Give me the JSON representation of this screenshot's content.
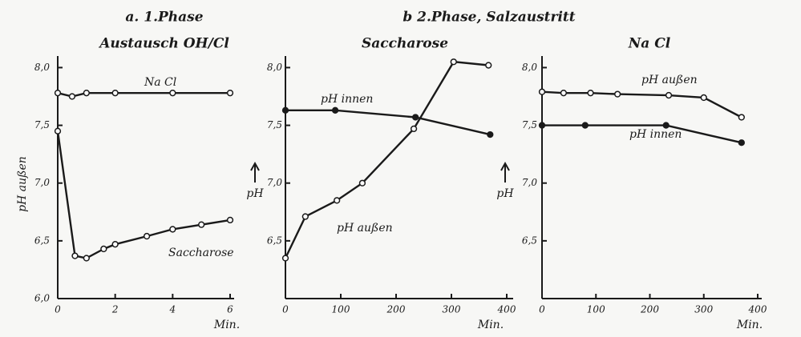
{
  "chart_data": [
    {
      "type": "line",
      "title": "a. 1.Phase",
      "subtitle": "Austausch OH/Cl",
      "y_label": "pH außen",
      "x_label": "Min.",
      "xlim": [
        0,
        6
      ],
      "ylim": [
        6.0,
        8.1
      ],
      "xticks": [
        0,
        2,
        4,
        6
      ],
      "yticks": [
        {
          "value": 6.0,
          "label": "6,0"
        },
        {
          "value": 6.5,
          "label": "6,5"
        },
        {
          "value": 7.0,
          "label": "7,0"
        },
        {
          "value": 7.5,
          "label": "7,5"
        },
        {
          "value": 8.0,
          "label": "8,0"
        }
      ],
      "series": [
        {
          "name": "Na Cl",
          "color": "#1a1a1a",
          "marker": "open",
          "x": [
            0,
            0.5,
            1,
            2,
            4,
            6
          ],
          "values": [
            7.78,
            7.75,
            7.78,
            7.78,
            7.78,
            7.78
          ]
        },
        {
          "name": "Saccharose",
          "color": "#1a1a1a",
          "marker": "open",
          "x": [
            0,
            0.6,
            1,
            1.6,
            2,
            3.1,
            4,
            5,
            6
          ],
          "values": [
            7.45,
            6.37,
            6.35,
            6.43,
            6.47,
            6.54,
            6.6,
            6.64,
            6.68
          ]
        }
      ]
    },
    {
      "type": "line",
      "title": "b 2.Phase, Salzaustritt",
      "subtitle": "Saccharose",
      "y_label": "pH",
      "x_label": "Min.",
      "xlim": [
        0,
        400
      ],
      "ylim": [
        6.0,
        8.1
      ],
      "xticks": [
        0,
        100,
        200,
        300,
        400
      ],
      "yticks": [
        {
          "value": 6.5,
          "label": "6,5"
        },
        {
          "value": 7.0,
          "label": "7,0"
        },
        {
          "value": 7.5,
          "label": "7,5"
        },
        {
          "value": 8.0,
          "label": "8,0"
        }
      ],
      "series": [
        {
          "name": "pH innen",
          "color": "#1a1a1a",
          "marker": "filled",
          "x": [
            0,
            90,
            235,
            370
          ],
          "values": [
            7.63,
            7.63,
            7.57,
            7.42
          ]
        },
        {
          "name": "pH außen",
          "color": "#1a1a1a",
          "marker": "open",
          "x": [
            0,
            36,
            93,
            139,
            232,
            304,
            367
          ],
          "values": [
            6.35,
            6.71,
            6.85,
            7.0,
            7.47,
            8.05,
            8.02
          ]
        }
      ]
    },
    {
      "type": "line",
      "subtitle": "Na Cl",
      "y_label": "pH",
      "x_label": "Min.",
      "xlim": [
        0,
        400
      ],
      "ylim": [
        6.0,
        8.1
      ],
      "xticks": [
        0,
        100,
        200,
        300,
        400
      ],
      "yticks": [
        {
          "value": 6.5,
          "label": "6,5"
        },
        {
          "value": 7.0,
          "label": "7,0"
        },
        {
          "value": 7.5,
          "label": "7,5"
        },
        {
          "value": 8.0,
          "label": "8,0"
        }
      ],
      "series": [
        {
          "name": "pH außen",
          "color": "#1a1a1a",
          "marker": "open",
          "x": [
            0,
            40,
            90,
            140,
            235,
            300,
            370
          ],
          "values": [
            7.79,
            7.78,
            7.78,
            7.77,
            7.76,
            7.74,
            7.57
          ]
        },
        {
          "name": "pH innen",
          "color": "#1a1a1a",
          "marker": "filled",
          "x": [
            0,
            80,
            230,
            370
          ],
          "values": [
            7.5,
            7.5,
            7.5,
            7.35
          ]
        }
      ]
    }
  ]
}
